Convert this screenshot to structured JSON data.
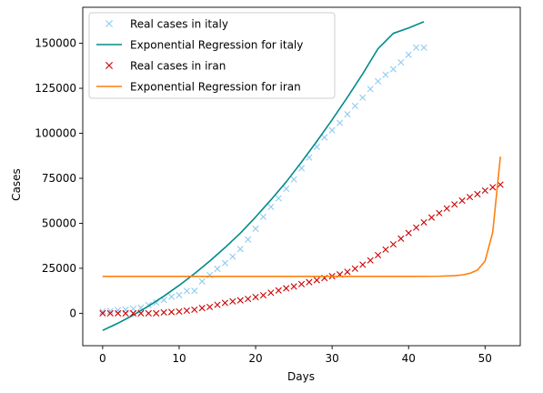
{
  "chart_data": {
    "type": "line",
    "title": "",
    "xlabel": "Days",
    "ylabel": "Cases",
    "xlim": [
      -2.6,
      54.6
    ],
    "ylim": [
      -18000,
      170000
    ],
    "xticks": [
      0,
      10,
      20,
      30,
      40,
      50
    ],
    "yticks": [
      0,
      25000,
      50000,
      75000,
      100000,
      125000,
      150000
    ],
    "grid": false,
    "legend_position": "top-left",
    "series": [
      {
        "name": "Real cases in italy",
        "kind": "scatter",
        "marker": "x",
        "color": "#8ecbf0",
        "x": [
          0,
          1,
          2,
          3,
          4,
          5,
          6,
          7,
          8,
          9,
          10,
          11,
          12,
          13,
          14,
          15,
          16,
          17,
          18,
          19,
          20,
          21,
          22,
          23,
          24,
          25,
          26,
          27,
          28,
          29,
          30,
          31,
          32,
          33,
          34,
          35,
          36,
          37,
          38,
          39,
          40,
          41,
          42
        ],
        "y": [
          1000,
          1200,
          1700,
          2000,
          2500,
          3100,
          4600,
          5900,
          7400,
          9200,
          10100,
          12400,
          12500,
          17700,
          21200,
          24700,
          27900,
          31500,
          35700,
          41000,
          47000,
          53600,
          59100,
          63900,
          69200,
          74400,
          80600,
          86500,
          92500,
          97700,
          101700,
          105800,
          110600,
          115200,
          119800,
          124600,
          128900,
          132500,
          135600,
          139400,
          143600,
          147600,
          147600
        ]
      },
      {
        "name": "Exponential Regression for italy",
        "kind": "line",
        "color": "#008b8b",
        "x": [
          0,
          2,
          4,
          6,
          8,
          10,
          12,
          14,
          16,
          18,
          20,
          22,
          24,
          26,
          28,
          30,
          32,
          34,
          36,
          38,
          40,
          42
        ],
        "y": [
          -9500,
          -5500,
          -1000,
          4000,
          9500,
          15500,
          22000,
          29000,
          36500,
          44500,
          53500,
          63000,
          73000,
          84000,
          95500,
          107500,
          120000,
          133000,
          147000,
          155500,
          158500,
          162000
        ]
      },
      {
        "name": "Real cases in iran",
        "kind": "scatter",
        "marker": "x",
        "color": "#cc0000",
        "x": [
          0,
          1,
          2,
          3,
          4,
          5,
          6,
          7,
          8,
          9,
          10,
          11,
          12,
          13,
          14,
          15,
          16,
          17,
          18,
          19,
          20,
          21,
          22,
          23,
          24,
          25,
          26,
          27,
          28,
          29,
          30,
          31,
          32,
          33,
          34,
          35,
          36,
          37,
          38,
          39,
          40,
          41,
          42,
          43,
          44,
          45,
          46,
          47,
          48,
          49,
          50,
          51,
          52
        ],
        "y": [
          0,
          0,
          0,
          0,
          0,
          0,
          0,
          0,
          500,
          700,
          1000,
          1500,
          2000,
          2900,
          3500,
          4700,
          5800,
          6600,
          7200,
          8000,
          9000,
          10000,
          11400,
          12700,
          13900,
          14900,
          16200,
          17300,
          18400,
          19600,
          20600,
          21600,
          23000,
          24800,
          27000,
          29400,
          32300,
          35400,
          38300,
          41500,
          44600,
          47600,
          50500,
          53200,
          55700,
          58200,
          60500,
          62600,
          64600,
          66200,
          68200,
          70000,
          71500
        ]
      },
      {
        "name": "Exponential Regression for iran",
        "kind": "line",
        "color": "#ff7f0e",
        "x": [
          0,
          5,
          10,
          15,
          20,
          25,
          30,
          35,
          40,
          44,
          46,
          47,
          48,
          49,
          50,
          51,
          52
        ],
        "y": [
          20500,
          20500,
          20500,
          20500,
          20500,
          20500,
          20500,
          20500,
          20500,
          20600,
          20900,
          21300,
          22200,
          24000,
          29000,
          45000,
          87000
        ]
      }
    ]
  }
}
